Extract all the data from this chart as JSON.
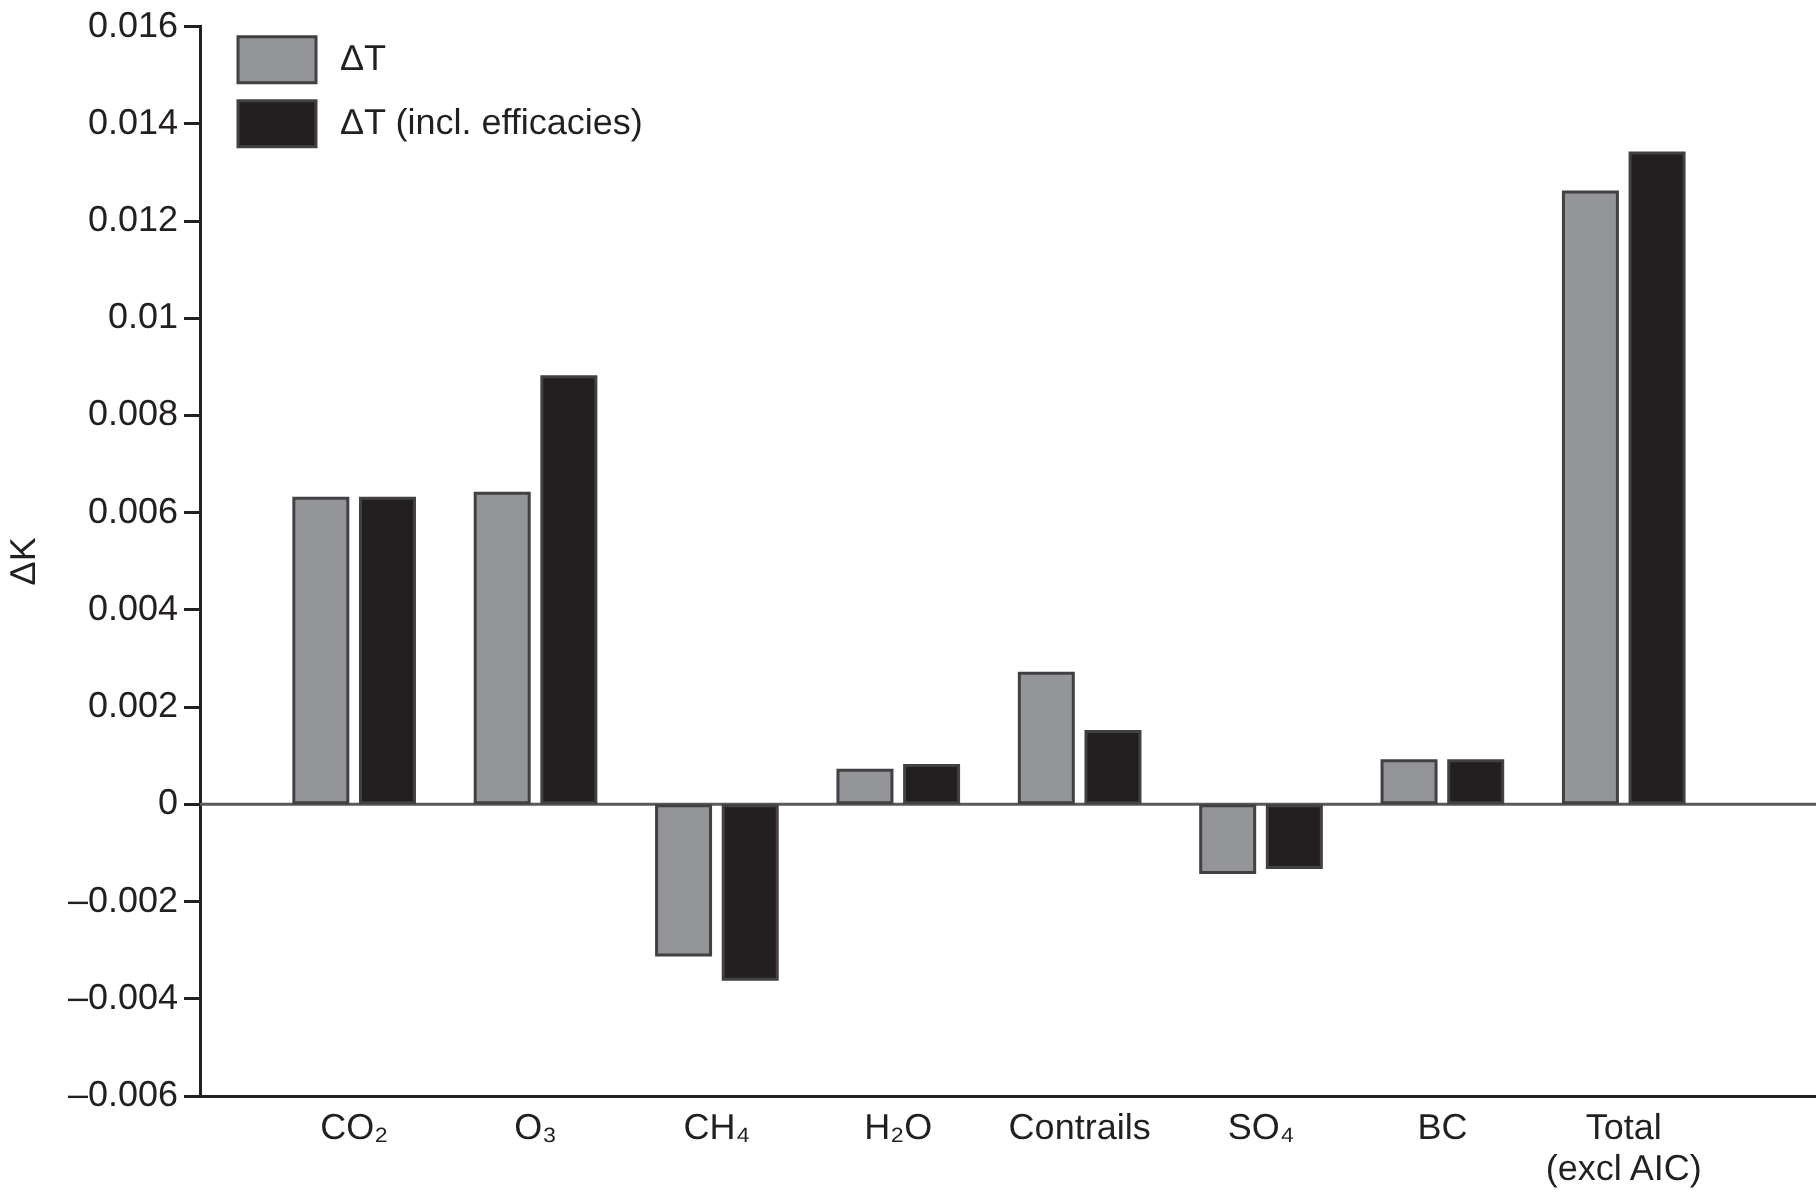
{
  "chart_data": {
    "type": "bar",
    "ylabel": "ΔK",
    "categories": [
      "CO₂",
      "O₃",
      "CH₄",
      "H₂O",
      "Contrails",
      "SO₄",
      "BC",
      "Total (excl AIC)"
    ],
    "series": [
      {
        "name": "ΔT",
        "color": "#939598",
        "values": [
          0.0063,
          0.0064,
          -0.0031,
          0.0007,
          0.0027,
          -0.0014,
          0.0009,
          0.0126
        ]
      },
      {
        "name": "ΔT (incl. efficacies)",
        "color": "#231f20",
        "values": [
          0.0063,
          0.0088,
          -0.0036,
          0.0008,
          0.0015,
          -0.0013,
          0.0009,
          0.0134
        ]
      }
    ],
    "ylim": [
      -0.006,
      0.016
    ],
    "yticks": [
      {
        "value": -0.006,
        "label": "–0.006"
      },
      {
        "value": -0.004,
        "label": "–0.004"
      },
      {
        "value": -0.002,
        "label": "–0.002"
      },
      0,
      0.002,
      0.004,
      0.006,
      0.008,
      0.01,
      0.012,
      0.014,
      0.016
    ],
    "legend": "top left",
    "ref_lines": [
      {
        "axis": "y",
        "value": 0,
        "color": "#58595b"
      }
    ]
  }
}
